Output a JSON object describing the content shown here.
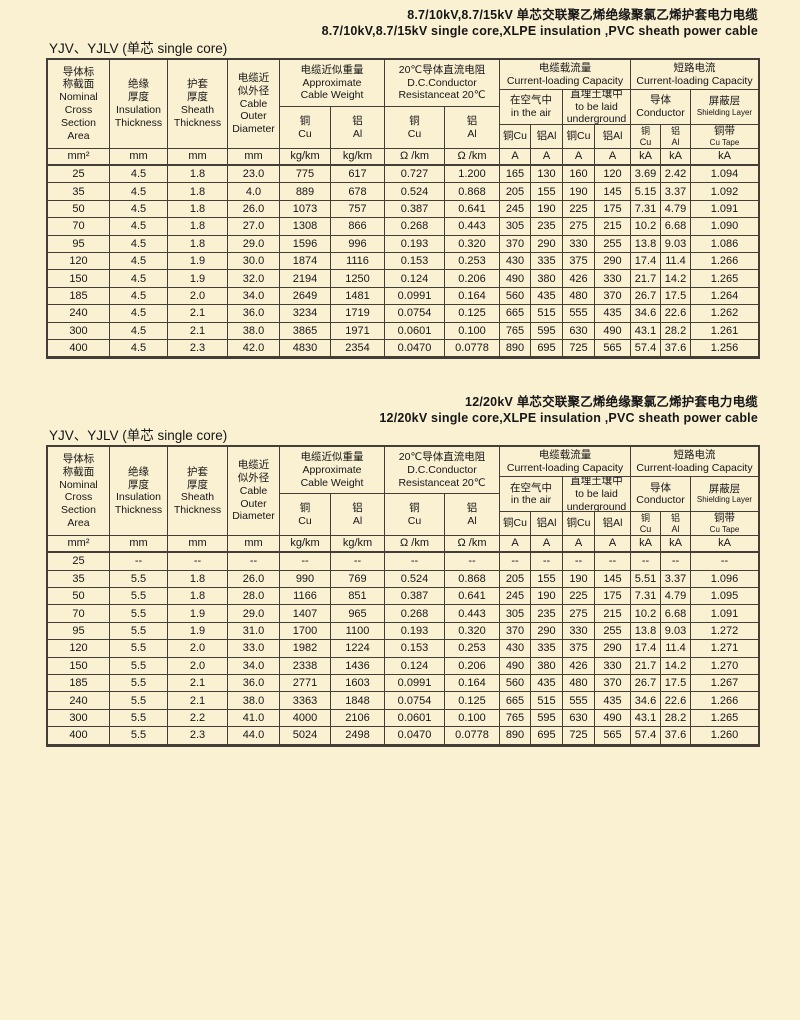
{
  "page": {
    "background_color": "#FAF0D2",
    "border_color": "#433F37"
  },
  "header": {
    "nominal": "导体标\n称截面\nNominal\nCross\nSection\nArea",
    "insulation": "绝缘\n厚度\nInsulation\nThickness",
    "sheath": "护套\n厚度\nSheath\nThickness",
    "diameter": "电缆近\n似外径\nCable\nOuter\nDiameter",
    "weight_title": "电缆近似重量\nApproximate\nCable Weight",
    "dc_title": "20℃导体直流电阻\nD.C.Conductor\nResistanceat 20℃",
    "capacity_title": "电缆载流量\nCurrent-loading Capacity",
    "short_title": "短路电流\nCurrent-loading Capacity",
    "cu": "铜\nCu",
    "al": "铝\nAl",
    "air": "在空气中\nin the air",
    "underground": "直埋土壤中\nto be laid\nunderground",
    "cu_inline": "铜Cu",
    "al_inline": "铝Al",
    "conductor": "导体\nConductor",
    "shield_zh": "屏蔽层",
    "shield_en": "Shielding Layer",
    "cutape_zh": "铜带",
    "cutape_en": "Cu Tape",
    "units": [
      "mm²",
      "mm",
      "mm",
      "mm",
      "kg/km",
      "kg/km",
      "Ω /km",
      "Ω /km",
      "A",
      "A",
      "A",
      "A",
      "kA",
      "kA",
      "kA"
    ]
  },
  "tables": [
    {
      "title_zh": "8.7/10kV,8.7/15kV 单芯交联聚乙烯绝缘聚氯乙烯护套电力电缆",
      "title_en": "8.7/10kV,8.7/15kV single core,XLPE insulation ,PVC sheath power cable",
      "series_label": "YJV、YJLV (单芯 single core)",
      "rows": [
        [
          "25",
          "4.5",
          "1.8",
          "23.0",
          "775",
          "617",
          "0.727",
          "1.200",
          "165",
          "130",
          "160",
          "120",
          "3.69",
          "2.42",
          "1.094"
        ],
        [
          "35",
          "4.5",
          "1.8",
          "4.0",
          "889",
          "678",
          "0.524",
          "0.868",
          "205",
          "155",
          "190",
          "145",
          "5.15",
          "3.37",
          "1.092"
        ],
        [
          "50",
          "4.5",
          "1.8",
          "26.0",
          "1073",
          "757",
          "0.387",
          "0.641",
          "245",
          "190",
          "225",
          "175",
          "7.31",
          "4.79",
          "1.091"
        ],
        [
          "70",
          "4.5",
          "1.8",
          "27.0",
          "1308",
          "866",
          "0.268",
          "0.443",
          "305",
          "235",
          "275",
          "215",
          "10.2",
          "6.68",
          "1.090"
        ],
        [
          "95",
          "4.5",
          "1.8",
          "29.0",
          "1596",
          "996",
          "0.193",
          "0.320",
          "370",
          "290",
          "330",
          "255",
          "13.8",
          "9.03",
          "1.086"
        ],
        [
          "120",
          "4.5",
          "1.9",
          "30.0",
          "1874",
          "1116",
          "0.153",
          "0.253",
          "430",
          "335",
          "375",
          "290",
          "17.4",
          "11.4",
          "1.266"
        ],
        [
          "150",
          "4.5",
          "1.9",
          "32.0",
          "2194",
          "1250",
          "0.124",
          "0.206",
          "490",
          "380",
          "426",
          "330",
          "21.7",
          "14.2",
          "1.265"
        ],
        [
          "185",
          "4.5",
          "2.0",
          "34.0",
          "2649",
          "1481",
          "0.0991",
          "0.164",
          "560",
          "435",
          "480",
          "370",
          "26.7",
          "17.5",
          "1.264"
        ],
        [
          "240",
          "4.5",
          "2.1",
          "36.0",
          "3234",
          "1719",
          "0.0754",
          "0.125",
          "665",
          "515",
          "555",
          "435",
          "34.6",
          "22.6",
          "1.262"
        ],
        [
          "300",
          "4.5",
          "2.1",
          "38.0",
          "3865",
          "1971",
          "0.0601",
          "0.100",
          "765",
          "595",
          "630",
          "490",
          "43.1",
          "28.2",
          "1.261"
        ],
        [
          "400",
          "4.5",
          "2.3",
          "42.0",
          "4830",
          "2354",
          "0.0470",
          "0.0778",
          "890",
          "695",
          "725",
          "565",
          "57.4",
          "37.6",
          "1.256"
        ]
      ]
    },
    {
      "title_zh": "12/20kV  单芯交联聚乙烯绝缘聚氯乙烯护套电力电缆",
      "title_en": "12/20kV single core,XLPE insulation ,PVC sheath power cable",
      "series_label": "YJV、YJLV (单芯 single core)",
      "rows": [
        [
          "25",
          "--",
          "--",
          "--",
          "--",
          "--",
          "--",
          "--",
          "--",
          "--",
          "--",
          "--",
          "--",
          "--",
          "--"
        ],
        [
          "35",
          "5.5",
          "1.8",
          "26.0",
          "990",
          "769",
          "0.524",
          "0.868",
          "205",
          "155",
          "190",
          "145",
          "5.51",
          "3.37",
          "1.096"
        ],
        [
          "50",
          "5.5",
          "1.8",
          "28.0",
          "1166",
          "851",
          "0.387",
          "0.641",
          "245",
          "190",
          "225",
          "175",
          "7.31",
          "4.79",
          "1.095"
        ],
        [
          "70",
          "5.5",
          "1.9",
          "29.0",
          "1407",
          "965",
          "0.268",
          "0.443",
          "305",
          "235",
          "275",
          "215",
          "10.2",
          "6.68",
          "1.091"
        ],
        [
          "95",
          "5.5",
          "1.9",
          "31.0",
          "1700",
          "1100",
          "0.193",
          "0.320",
          "370",
          "290",
          "330",
          "255",
          "13.8",
          "9.03",
          "1.272"
        ],
        [
          "120",
          "5.5",
          "2.0",
          "33.0",
          "1982",
          "1224",
          "0.153",
          "0.253",
          "430",
          "335",
          "375",
          "290",
          "17.4",
          "11.4",
          "1.271"
        ],
        [
          "150",
          "5.5",
          "2.0",
          "34.0",
          "2338",
          "1436",
          "0.124",
          "0.206",
          "490",
          "380",
          "426",
          "330",
          "21.7",
          "14.2",
          "1.270"
        ],
        [
          "185",
          "5.5",
          "2.1",
          "36.0",
          "2771",
          "1603",
          "0.0991",
          "0.164",
          "560",
          "435",
          "480",
          "370",
          "26.7",
          "17.5",
          "1.267"
        ],
        [
          "240",
          "5.5",
          "2.1",
          "38.0",
          "3363",
          "1848",
          "0.0754",
          "0.125",
          "665",
          "515",
          "555",
          "435",
          "34.6",
          "22.6",
          "1.266"
        ],
        [
          "300",
          "5.5",
          "2.2",
          "41.0",
          "4000",
          "2106",
          "0.0601",
          "0.100",
          "765",
          "595",
          "630",
          "490",
          "43.1",
          "28.2",
          "1.265"
        ],
        [
          "400",
          "5.5",
          "2.3",
          "44.0",
          "5024",
          "2498",
          "0.0470",
          "0.0778",
          "890",
          "695",
          "725",
          "565",
          "57.4",
          "37.6",
          "1.260"
        ]
      ]
    }
  ]
}
